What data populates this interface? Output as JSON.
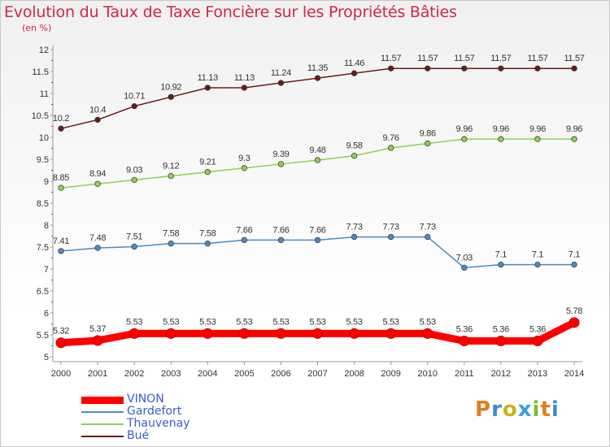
{
  "title": "Evolution du Taux de Taxe Foncière sur les Propriétés Bâties",
  "unit": "(en %)",
  "logo": {
    "text": "Proxiti",
    "colors": [
      "#e07f1a",
      "#3d8bd6",
      "#c9b21f",
      "#38a0d8",
      "#7cbf2a",
      "#e07f1a",
      "#3d8bd6"
    ]
  },
  "chart_data": {
    "type": "line",
    "x": [
      "2000",
      "2001",
      "2002",
      "2003",
      "2004",
      "2005",
      "2006",
      "2007",
      "2008",
      "2009",
      "2010",
      "2011",
      "2012",
      "2013",
      "2014"
    ],
    "ylim": [
      5,
      12
    ],
    "yticks": [
      "5",
      "5.5",
      "6",
      "6.5",
      "7",
      "7.5",
      "8",
      "8.5",
      "9",
      "9.5",
      "10",
      "10.5",
      "11",
      "11.5",
      "12"
    ],
    "grid": false,
    "legend": "bottom-left",
    "series": [
      {
        "name": "VINON",
        "color": "#ff0000",
        "values": [
          5.32,
          5.37,
          5.53,
          5.53,
          5.53,
          5.53,
          5.53,
          5.53,
          5.53,
          5.53,
          5.53,
          5.36,
          5.36,
          5.36,
          5.78
        ],
        "labels": [
          "5.32",
          "5.37",
          "5.53",
          "5.53",
          "5.53",
          "5.53",
          "5.53",
          "5.53",
          "5.53",
          "5.53",
          "5.53",
          "5.36",
          "5.36",
          "5.36",
          "5.78"
        ]
      },
      {
        "name": "Gardefort",
        "color": "#4a8cc9",
        "values": [
          7.41,
          7.48,
          7.51,
          7.58,
          7.58,
          7.66,
          7.66,
          7.66,
          7.73,
          7.73,
          7.73,
          7.03,
          7.1,
          7.1,
          7.1
        ],
        "labels": [
          "7.41",
          "7.48",
          "7.51",
          "7.58",
          "7.58",
          "7.66",
          "7.66",
          "7.66",
          "7.73",
          "7.73",
          "7.73",
          "7.03",
          "7.1",
          "7.1",
          "7.1"
        ]
      },
      {
        "name": "Thauvenay",
        "color": "#8fd14f",
        "values": [
          8.85,
          8.94,
          9.03,
          9.12,
          9.21,
          9.3,
          9.39,
          9.48,
          9.58,
          9.76,
          9.86,
          9.96,
          9.96,
          9.96,
          9.96
        ],
        "labels": [
          "8.85",
          "8.94",
          "9.03",
          "9.12",
          "9.21",
          "9.3",
          "9.39",
          "9.48",
          "9.58",
          "9.76",
          "9.86",
          "9.96",
          "9.96",
          "9.96",
          "9.96"
        ]
      },
      {
        "name": "Bué",
        "color": "#6b1a1a",
        "values": [
          10.2,
          10.4,
          10.71,
          10.92,
          11.13,
          11.13,
          11.24,
          11.35,
          11.46,
          11.57,
          11.57,
          11.57,
          11.57,
          11.57,
          11.57
        ],
        "labels": [
          "10.2",
          "10.4",
          "10.71",
          "10.92",
          "11.13",
          "11.13",
          "11.24",
          "11.35",
          "11.46",
          "11.57",
          "11.57",
          "11.57",
          "11.57",
          "11.57",
          "11.57"
        ]
      }
    ]
  }
}
